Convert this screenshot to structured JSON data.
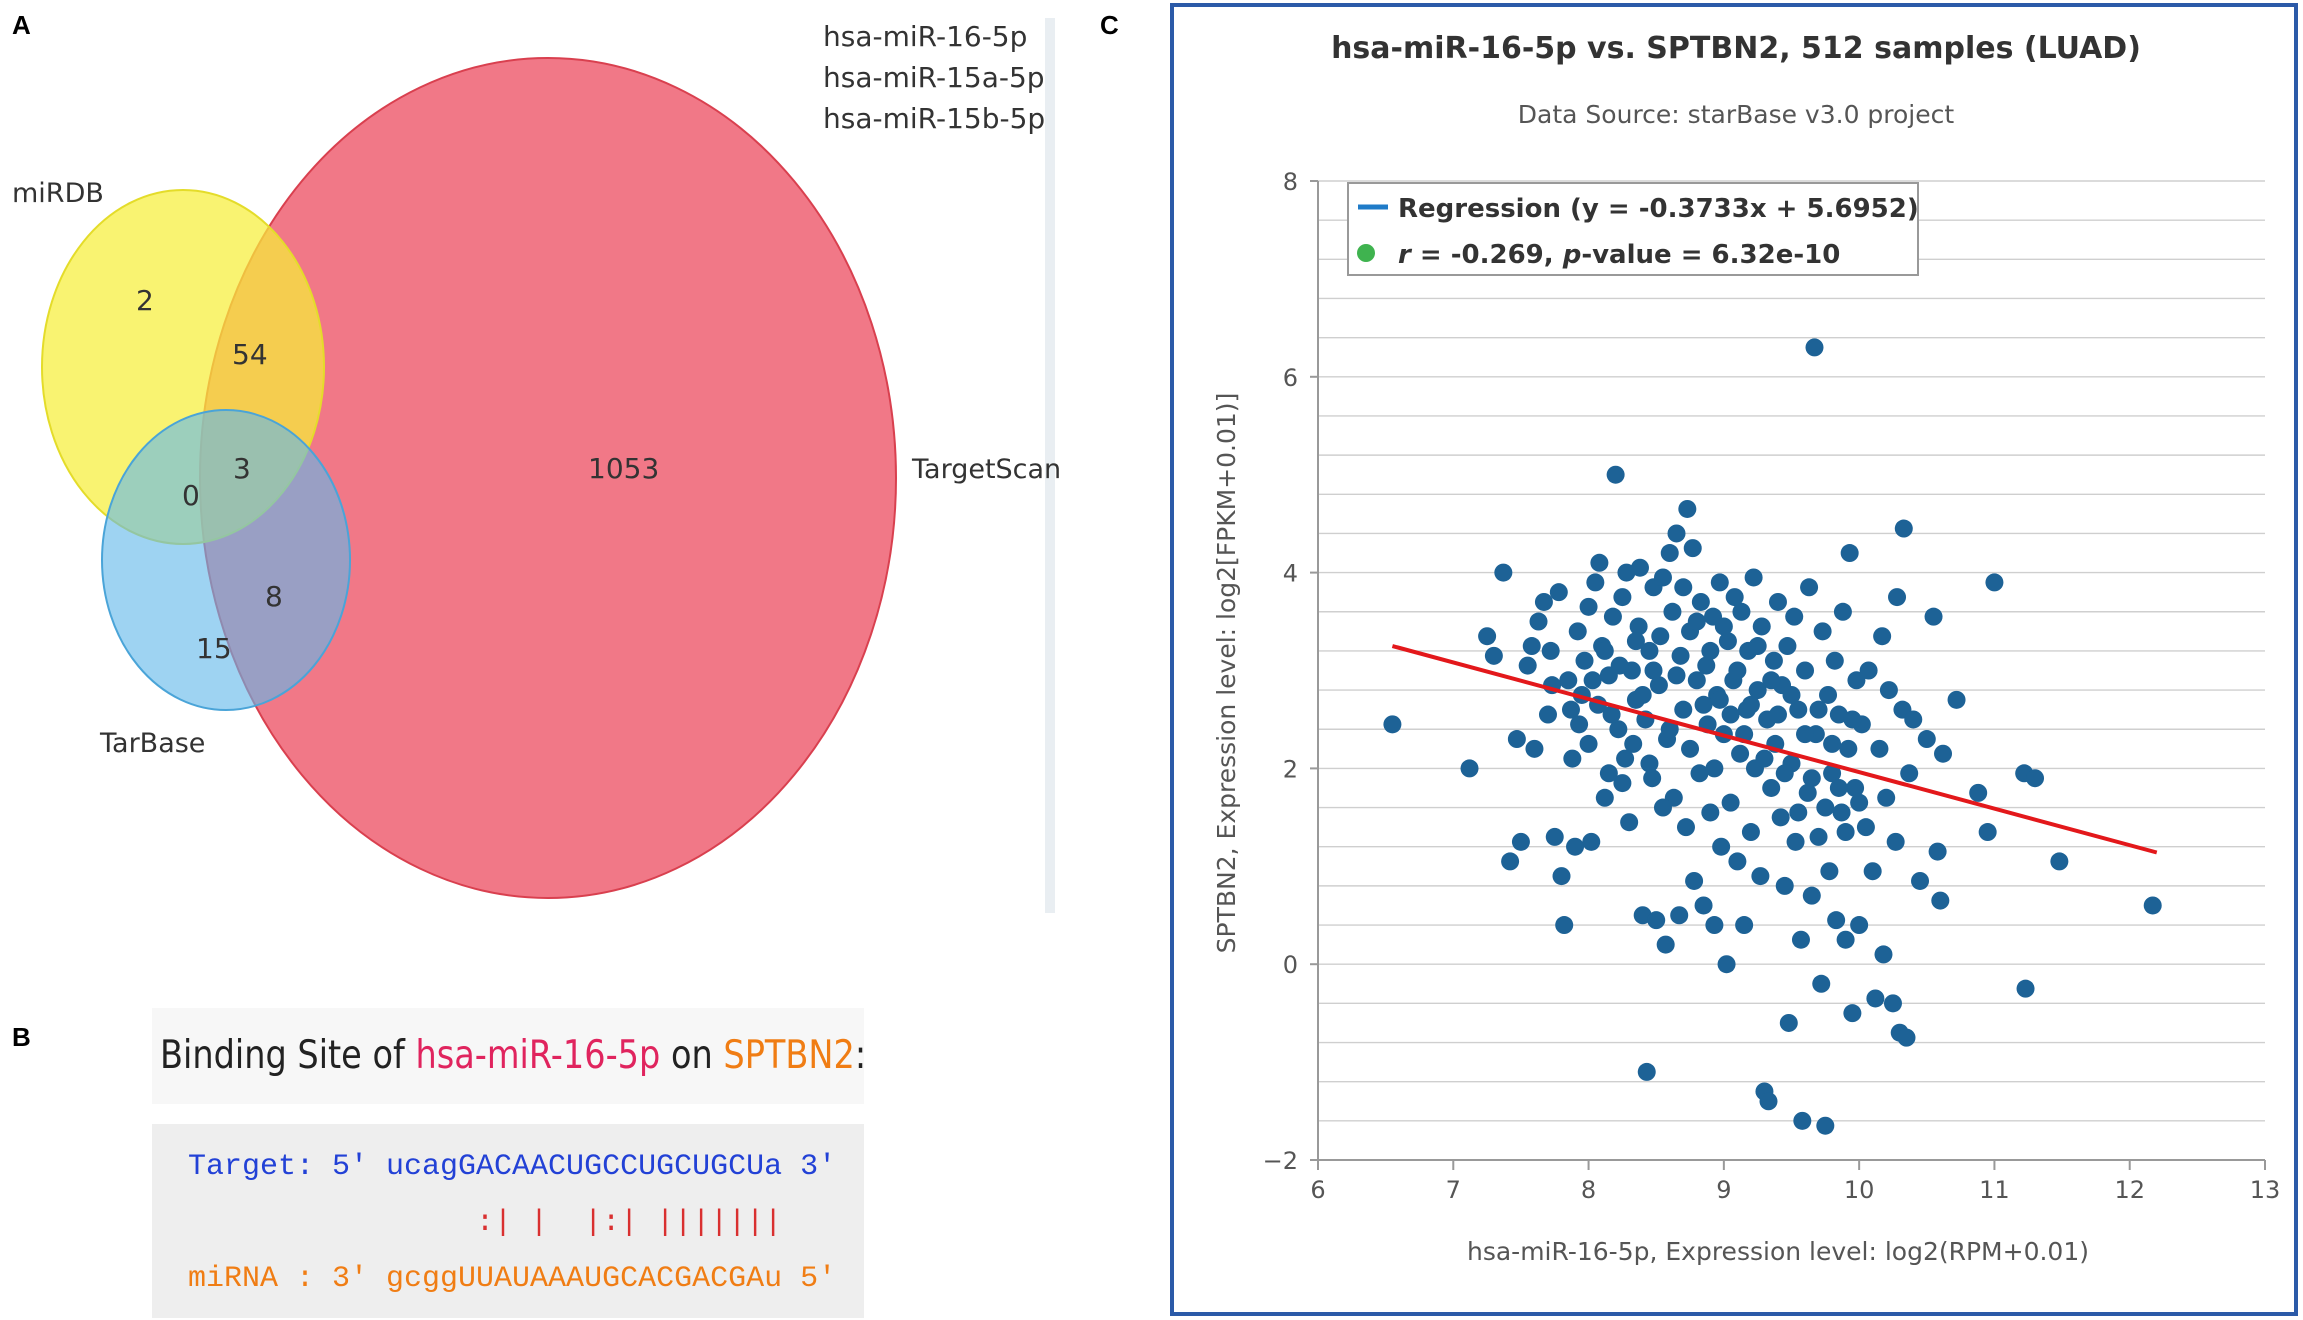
{
  "panels": {
    "a_letter": "A",
    "b_letter": "B",
    "c_letter": "C"
  },
  "venn": {
    "mirnas": [
      "hsa-miR-16-5p",
      "hsa-miR-15a-5p",
      "hsa-miR-15b-5p"
    ],
    "set_labels": {
      "mirdb": "miRDB",
      "tarbase": "TarBase",
      "targetscan": "TargetScan"
    },
    "counts": {
      "mirdb_only": "2",
      "mirdb_targetscan": "54",
      "mirdb_tarbase": "0",
      "all_three": "3",
      "tarbase_targetscan": "8",
      "tarbase_only": "15",
      "targetscan_only": "1053"
    },
    "colors": {
      "mirdb": "#f6ef3a",
      "tarbase": "#62b8ea",
      "targetscan": "#ee5a6c"
    }
  },
  "binding": {
    "title_prefix": "Binding Site of ",
    "mirna": "hsa-miR-16-5p",
    "title_mid": " on ",
    "gene": "SPTBN2",
    "title_suffix": ":",
    "target_line": "Target: 5' ucagGACAACUGCCUGCUGCUa 3'",
    "match_line": "                :| |  |:| |||||||",
    "mirna_line": "miRNA : 3' gcggUUAUAAAUGCACGACGAu 5'",
    "colors": {
      "mirna": "#e0245e",
      "gene": "#f07d14",
      "target_seq": "#2241d6",
      "mirna_seq": "#f07d14",
      "match": "#d93030"
    }
  },
  "chart_data": {
    "type": "scatter",
    "title": "hsa-miR-16-5p vs. SPTBN2, 512 samples (LUAD)",
    "subtitle": "Data Source: starBase v3.0 project",
    "xlabel": "hsa-miR-16-5p, Expression level: log2(RPM+0.01)",
    "ylabel": "SPTBN2, Expression level: log2[FPKM+0.01)]",
    "xlim": [
      6,
      13
    ],
    "ylim": [
      -2,
      8
    ],
    "xticks": [
      6,
      7,
      8,
      9,
      10,
      11,
      12,
      13
    ],
    "yticks": [
      -2,
      0,
      2,
      4,
      6,
      8
    ],
    "grid": true,
    "legend": {
      "position": "top-left",
      "regression_label": "Regression (y = -0.3733x + 5.6952)",
      "stat_r": "r",
      "stat_r_value": " = -0.269, ",
      "stat_p": "p",
      "stat_p_value": "-value = 6.32e-10"
    },
    "regression": {
      "slope": -0.3733,
      "intercept": 5.6952,
      "x_range": [
        6.55,
        12.2
      ]
    },
    "point_color": "#1d6296",
    "line_color": "#e3181b",
    "points": [
      [
        6.55,
        2.45
      ],
      [
        7.12,
        2.0
      ],
      [
        7.25,
        3.35
      ],
      [
        7.3,
        3.15
      ],
      [
        7.37,
        4.0
      ],
      [
        7.42,
        1.05
      ],
      [
        7.47,
        2.3
      ],
      [
        7.5,
        1.25
      ],
      [
        7.55,
        3.05
      ],
      [
        7.6,
        2.2
      ],
      [
        7.63,
        3.5
      ],
      [
        7.67,
        3.7
      ],
      [
        7.7,
        2.55
      ],
      [
        7.72,
        3.2
      ],
      [
        7.75,
        1.3
      ],
      [
        7.78,
        3.8
      ],
      [
        7.8,
        0.9
      ],
      [
        7.82,
        0.4
      ],
      [
        7.85,
        2.9
      ],
      [
        7.87,
        2.6
      ],
      [
        7.9,
        1.2
      ],
      [
        7.92,
        3.4
      ],
      [
        7.95,
        2.75
      ],
      [
        7.97,
        3.1
      ],
      [
        8.0,
        2.25
      ],
      [
        8.02,
        1.25
      ],
      [
        8.05,
        3.9
      ],
      [
        8.07,
        2.65
      ],
      [
        8.08,
        4.1
      ],
      [
        8.1,
        3.25
      ],
      [
        8.12,
        1.7
      ],
      [
        8.15,
        2.95
      ],
      [
        8.18,
        3.55
      ],
      [
        8.2,
        5.0
      ],
      [
        8.22,
        2.4
      ],
      [
        8.25,
        3.75
      ],
      [
        8.27,
        2.1
      ],
      [
        8.28,
        4.0
      ],
      [
        8.3,
        1.45
      ],
      [
        8.32,
        3.0
      ],
      [
        8.35,
        2.7
      ],
      [
        8.37,
        3.45
      ],
      [
        8.38,
        4.05
      ],
      [
        8.4,
        0.5
      ],
      [
        8.42,
        2.5
      ],
      [
        8.43,
        -1.1
      ],
      [
        8.45,
        3.2
      ],
      [
        8.47,
        1.9
      ],
      [
        8.48,
        3.85
      ],
      [
        8.5,
        0.45
      ],
      [
        8.52,
        2.85
      ],
      [
        8.55,
        3.95
      ],
      [
        8.57,
        0.2
      ],
      [
        8.58,
        2.3
      ],
      [
        8.6,
        4.2
      ],
      [
        8.62,
        3.6
      ],
      [
        8.63,
        1.7
      ],
      [
        8.65,
        4.4
      ],
      [
        8.67,
        0.5
      ],
      [
        8.68,
        3.15
      ],
      [
        8.7,
        2.6
      ],
      [
        8.72,
        1.4
      ],
      [
        8.73,
        4.65
      ],
      [
        8.75,
        3.4
      ],
      [
        8.77,
        4.25
      ],
      [
        8.78,
        0.85
      ],
      [
        8.8,
        2.9
      ],
      [
        8.82,
        1.95
      ],
      [
        8.83,
        3.7
      ],
      [
        8.85,
        0.6
      ],
      [
        8.87,
        3.05
      ],
      [
        8.88,
        2.45
      ],
      [
        8.9,
        1.55
      ],
      [
        8.92,
        3.55
      ],
      [
        8.93,
        0.4
      ],
      [
        8.95,
        2.75
      ],
      [
        8.97,
        3.9
      ],
      [
        8.98,
        1.2
      ],
      [
        9.0,
        2.35
      ],
      [
        9.02,
        0.0
      ],
      [
        9.03,
        3.3
      ],
      [
        9.05,
        1.65
      ],
      [
        9.07,
        2.9
      ],
      [
        9.08,
        3.75
      ],
      [
        9.1,
        1.05
      ],
      [
        9.12,
        2.15
      ],
      [
        9.13,
        3.6
      ],
      [
        9.15,
        0.4
      ],
      [
        9.17,
        2.6
      ],
      [
        9.18,
        3.2
      ],
      [
        9.2,
        1.35
      ],
      [
        9.22,
        3.95
      ],
      [
        9.23,
        2.0
      ],
      [
        9.25,
        2.8
      ],
      [
        9.27,
        0.9
      ],
      [
        9.28,
        3.45
      ],
      [
        9.3,
        -1.3
      ],
      [
        9.32,
        2.5
      ],
      [
        9.33,
        -1.4
      ],
      [
        9.35,
        1.8
      ],
      [
        9.37,
        3.1
      ],
      [
        9.38,
        2.25
      ],
      [
        9.4,
        3.7
      ],
      [
        9.42,
        1.5
      ],
      [
        9.43,
        2.85
      ],
      [
        9.45,
        0.8
      ],
      [
        9.47,
        3.25
      ],
      [
        9.48,
        -0.6
      ],
      [
        9.5,
        2.05
      ],
      [
        9.52,
        3.55
      ],
      [
        9.53,
        1.25
      ],
      [
        9.55,
        2.6
      ],
      [
        9.57,
        0.25
      ],
      [
        9.58,
        -1.6
      ],
      [
        9.6,
        3.0
      ],
      [
        9.62,
        1.75
      ],
      [
        9.63,
        3.85
      ],
      [
        9.65,
        0.7
      ],
      [
        9.67,
        6.3
      ],
      [
        9.68,
        2.35
      ],
      [
        9.7,
        1.3
      ],
      [
        9.72,
        -0.2
      ],
      [
        9.73,
        3.4
      ],
      [
        9.75,
        -1.65
      ],
      [
        9.77,
        2.75
      ],
      [
        9.78,
        0.95
      ],
      [
        9.8,
        1.95
      ],
      [
        9.82,
        3.1
      ],
      [
        9.83,
        0.45
      ],
      [
        9.85,
        2.55
      ],
      [
        9.87,
        1.55
      ],
      [
        9.88,
        3.6
      ],
      [
        9.9,
        0.25
      ],
      [
        9.92,
        2.2
      ],
      [
        9.93,
        4.2
      ],
      [
        9.95,
        -0.5
      ],
      [
        9.97,
        1.8
      ],
      [
        9.98,
        2.9
      ],
      [
        10.0,
        0.4
      ],
      [
        10.02,
        2.45
      ],
      [
        10.05,
        1.4
      ],
      [
        10.07,
        3.0
      ],
      [
        10.1,
        0.95
      ],
      [
        10.12,
        -0.35
      ],
      [
        10.15,
        2.2
      ],
      [
        10.17,
        3.35
      ],
      [
        10.18,
        0.1
      ],
      [
        10.2,
        1.7
      ],
      [
        10.22,
        2.8
      ],
      [
        10.25,
        -0.4
      ],
      [
        10.27,
        1.25
      ],
      [
        10.28,
        3.75
      ],
      [
        10.3,
        -0.7
      ],
      [
        10.32,
        2.6
      ],
      [
        10.33,
        4.45
      ],
      [
        10.35,
        -0.75
      ],
      [
        10.37,
        1.95
      ],
      [
        10.4,
        2.5
      ],
      [
        10.45,
        0.85
      ],
      [
        10.5,
        2.3
      ],
      [
        10.55,
        3.55
      ],
      [
        10.58,
        1.15
      ],
      [
        10.6,
        0.65
      ],
      [
        10.62,
        2.15
      ],
      [
        10.72,
        2.7
      ],
      [
        10.88,
        1.75
      ],
      [
        10.95,
        1.35
      ],
      [
        11.0,
        3.9
      ],
      [
        11.22,
        1.95
      ],
      [
        11.23,
        -0.25
      ],
      [
        11.3,
        1.9
      ],
      [
        11.48,
        1.05
      ],
      [
        12.17,
        0.6
      ],
      [
        7.58,
        3.25
      ],
      [
        7.73,
        2.85
      ],
      [
        7.88,
        2.1
      ],
      [
        7.93,
        2.45
      ],
      [
        8.0,
        3.65
      ],
      [
        8.03,
        2.9
      ],
      [
        8.12,
        3.2
      ],
      [
        8.15,
        1.95
      ],
      [
        8.17,
        2.55
      ],
      [
        8.23,
        3.05
      ],
      [
        8.25,
        1.85
      ],
      [
        8.33,
        2.25
      ],
      [
        8.35,
        3.3
      ],
      [
        8.4,
        2.75
      ],
      [
        8.45,
        2.05
      ],
      [
        8.48,
        3.0
      ],
      [
        8.53,
        3.35
      ],
      [
        8.55,
        1.6
      ],
      [
        8.6,
        2.4
      ],
      [
        8.65,
        2.95
      ],
      [
        8.7,
        3.85
      ],
      [
        8.75,
        2.2
      ],
      [
        8.8,
        3.5
      ],
      [
        8.85,
        2.65
      ],
      [
        8.9,
        3.2
      ],
      [
        8.93,
        2.0
      ],
      [
        8.97,
        2.7
      ],
      [
        9.0,
        3.45
      ],
      [
        9.05,
        2.55
      ],
      [
        9.1,
        3.0
      ],
      [
        9.15,
        2.35
      ],
      [
        9.2,
        2.65
      ],
      [
        9.25,
        3.25
      ],
      [
        9.3,
        2.1
      ],
      [
        9.35,
        2.9
      ],
      [
        9.4,
        2.55
      ],
      [
        9.45,
        1.95
      ],
      [
        9.5,
        2.75
      ],
      [
        9.55,
        1.55
      ],
      [
        9.6,
        2.35
      ],
      [
        9.65,
        1.9
      ],
      [
        9.7,
        2.6
      ],
      [
        9.75,
        1.6
      ],
      [
        9.8,
        2.25
      ],
      [
        9.85,
        1.8
      ],
      [
        9.9,
        1.35
      ],
      [
        9.95,
        2.5
      ],
      [
        10.0,
        1.65
      ]
    ]
  }
}
